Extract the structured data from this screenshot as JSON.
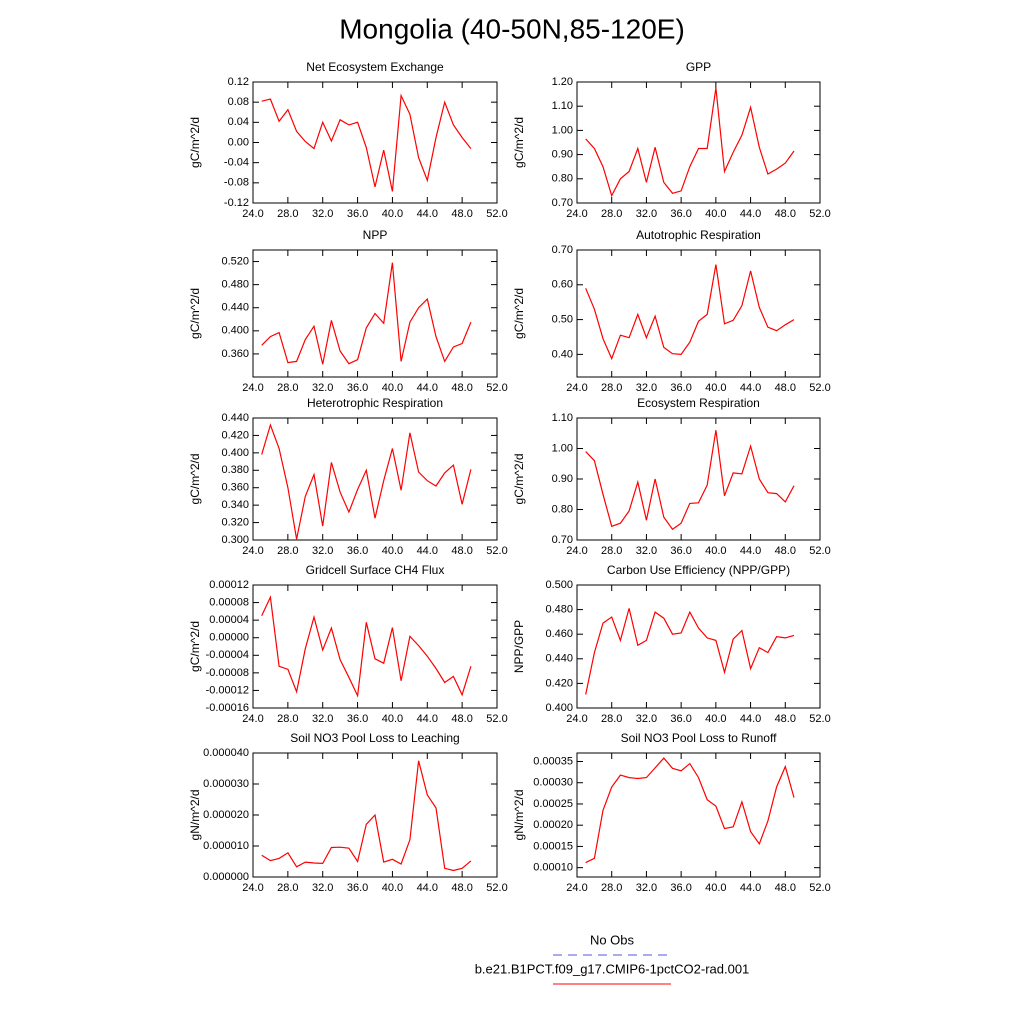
{
  "title": "Mongolia (40-50N,85-120E)",
  "legend": [
    {
      "name": "No Obs",
      "color": "#5555dd",
      "dash": true
    },
    {
      "name": "b.e21.B1PCT.f09_g17.CMIP6-1pctCO2-rad.001",
      "color": "#ff0000",
      "dash": false
    }
  ],
  "chart_data": [
    {
      "type": "line",
      "title": "Net Ecosystem Exchange",
      "ylabel": "gC/m^2/d",
      "color": "#ff0000",
      "x": [
        25,
        26,
        27,
        28,
        29,
        30,
        31,
        32,
        33,
        34,
        35,
        36,
        37,
        38,
        39,
        40,
        41,
        42,
        43,
        44,
        45,
        46,
        47,
        48,
        49
      ],
      "values": [
        0.082,
        0.086,
        0.042,
        0.065,
        0.022,
        0.002,
        -0.012,
        0.04,
        0.003,
        0.045,
        0.035,
        0.04,
        -0.01,
        -0.088,
        -0.015,
        -0.097,
        0.093,
        0.056,
        -0.03,
        -0.075,
        0.01,
        0.08,
        0.035,
        0.01,
        -0.012
      ],
      "xlim": [
        24,
        52
      ],
      "xticks": [
        {
          "value": 24,
          "label": "24.0"
        },
        {
          "value": 28,
          "label": "28.0"
        },
        {
          "value": 32,
          "label": "32.0"
        },
        {
          "value": 36,
          "label": "36.0"
        },
        {
          "value": 40,
          "label": "40.0"
        },
        {
          "value": 44,
          "label": "44.0"
        },
        {
          "value": 48,
          "label": "48.0"
        },
        {
          "value": 52,
          "label": "52.0"
        }
      ],
      "ylim": [
        -0.12,
        0.12
      ],
      "yticks": [
        -0.12,
        -0.08,
        -0.04,
        {
          "value": 0,
          "label": "0.00"
        },
        0.04,
        0.08,
        0.12
      ]
    },
    {
      "type": "line",
      "title": "GPP",
      "ylabel": "gC/m^2/d",
      "color": "#ff0000",
      "x": [
        25,
        26,
        27,
        28,
        29,
        30,
        31,
        32,
        33,
        34,
        35,
        36,
        37,
        38,
        39,
        40,
        41,
        42,
        43,
        44,
        45,
        46,
        47,
        48,
        49
      ],
      "values": [
        0.965,
        0.925,
        0.85,
        0.73,
        0.8,
        0.83,
        0.925,
        0.785,
        0.93,
        0.785,
        0.74,
        0.75,
        0.85,
        0.925,
        0.925,
        1.175,
        0.83,
        0.91,
        0.98,
        1.095,
        0.93,
        0.82,
        0.84,
        0.865,
        0.915
      ],
      "xlim": [
        24,
        52
      ],
      "xticks": [
        {
          "value": 24,
          "label": "24.0"
        },
        {
          "value": 28,
          "label": "28.0"
        },
        {
          "value": 32,
          "label": "32.0"
        },
        {
          "value": 36,
          "label": "36.0"
        },
        {
          "value": 40,
          "label": "40.0"
        },
        {
          "value": 44,
          "label": "44.0"
        },
        {
          "value": 48,
          "label": "48.0"
        },
        {
          "value": 52,
          "label": "52.0"
        }
      ],
      "ylim": [
        0.7,
        1.2
      ],
      "yticks": [
        {
          "value": 0.7,
          "label": "0.70"
        },
        {
          "value": 0.8,
          "label": "0.80"
        },
        {
          "value": 0.9,
          "label": "0.90"
        },
        {
          "value": 1,
          "label": "1.00"
        },
        {
          "value": 1.1,
          "label": "1.10"
        },
        {
          "value": 1.2,
          "label": "1.20"
        }
      ]
    },
    {
      "type": "line",
      "title": "NPP",
      "ylabel": "gC/m^2/d",
      "color": "#ff0000",
      "x": [
        25,
        26,
        27,
        28,
        29,
        30,
        31,
        32,
        33,
        34,
        35,
        36,
        37,
        38,
        39,
        40,
        41,
        42,
        43,
        44,
        45,
        46,
        47,
        48,
        49
      ],
      "values": [
        0.375,
        0.39,
        0.397,
        0.345,
        0.347,
        0.385,
        0.408,
        0.342,
        0.418,
        0.365,
        0.343,
        0.35,
        0.405,
        0.43,
        0.413,
        0.518,
        0.347,
        0.415,
        0.44,
        0.455,
        0.39,
        0.347,
        0.372,
        0.378,
        0.415
      ],
      "xlim": [
        24,
        52
      ],
      "xticks": [
        {
          "value": 24,
          "label": "24.0"
        },
        {
          "value": 28,
          "label": "28.0"
        },
        {
          "value": 32,
          "label": "32.0"
        },
        {
          "value": 36,
          "label": "36.0"
        },
        {
          "value": 40,
          "label": "40.0"
        },
        {
          "value": 44,
          "label": "44.0"
        },
        {
          "value": 48,
          "label": "48.0"
        },
        {
          "value": 52,
          "label": "52.0"
        }
      ],
      "ylim": [
        0.32,
        0.54
      ],
      "yticks": [
        {
          "value": 0.36,
          "label": "0.360"
        },
        {
          "value": 0.4,
          "label": "0.400"
        },
        {
          "value": 0.44,
          "label": "0.440"
        },
        {
          "value": 0.48,
          "label": "0.480"
        },
        {
          "value": 0.52,
          "label": "0.520"
        }
      ]
    },
    {
      "type": "line",
      "title": "Autotrophic Respiration",
      "ylabel": "gC/m^2/d",
      "color": "#ff0000",
      "x": [
        25,
        26,
        27,
        28,
        29,
        30,
        31,
        32,
        33,
        34,
        35,
        36,
        37,
        38,
        39,
        40,
        41,
        42,
        43,
        44,
        45,
        46,
        47,
        48,
        49
      ],
      "values": [
        0.59,
        0.53,
        0.445,
        0.388,
        0.455,
        0.448,
        0.515,
        0.448,
        0.51,
        0.42,
        0.402,
        0.4,
        0.435,
        0.495,
        0.515,
        0.658,
        0.488,
        0.498,
        0.54,
        0.64,
        0.535,
        0.478,
        0.468,
        0.485,
        0.5
      ],
      "xlim": [
        24,
        52
      ],
      "xticks": [
        {
          "value": 24,
          "label": "24.0"
        },
        {
          "value": 28,
          "label": "28.0"
        },
        {
          "value": 32,
          "label": "32.0"
        },
        {
          "value": 36,
          "label": "36.0"
        },
        {
          "value": 40,
          "label": "40.0"
        },
        {
          "value": 44,
          "label": "44.0"
        },
        {
          "value": 48,
          "label": "48.0"
        },
        {
          "value": 52,
          "label": "52.0"
        }
      ],
      "ylim": [
        0.335,
        0.7
      ],
      "yticks": [
        {
          "value": 0.4,
          "label": "0.40"
        },
        {
          "value": 0.5,
          "label": "0.50"
        },
        {
          "value": 0.6,
          "label": "0.60"
        },
        {
          "value": 0.7,
          "label": "0.70"
        }
      ]
    },
    {
      "type": "line",
      "title": "Heterotrophic Respiration",
      "ylabel": "gC/m^2/d",
      "color": "#ff0000",
      "x": [
        25,
        26,
        27,
        28,
        29,
        30,
        31,
        32,
        33,
        34,
        35,
        36,
        37,
        38,
        39,
        40,
        41,
        42,
        43,
        44,
        45,
        46,
        47,
        48,
        49
      ],
      "values": [
        0.398,
        0.432,
        0.405,
        0.36,
        0.301,
        0.35,
        0.375,
        0.316,
        0.389,
        0.355,
        0.332,
        0.358,
        0.38,
        0.325,
        0.368,
        0.405,
        0.357,
        0.423,
        0.378,
        0.368,
        0.362,
        0.377,
        0.386,
        0.341,
        0.381
      ],
      "xlim": [
        24,
        52
      ],
      "xticks": [
        {
          "value": 24,
          "label": "24.0"
        },
        {
          "value": 28,
          "label": "28.0"
        },
        {
          "value": 32,
          "label": "32.0"
        },
        {
          "value": 36,
          "label": "36.0"
        },
        {
          "value": 40,
          "label": "40.0"
        },
        {
          "value": 44,
          "label": "44.0"
        },
        {
          "value": 48,
          "label": "48.0"
        },
        {
          "value": 52,
          "label": "52.0"
        }
      ],
      "ylim": [
        0.3,
        0.44
      ],
      "yticks": [
        {
          "value": 0.3,
          "label": "0.300"
        },
        {
          "value": 0.32,
          "label": "0.320"
        },
        {
          "value": 0.34,
          "label": "0.340"
        },
        {
          "value": 0.36,
          "label": "0.360"
        },
        {
          "value": 0.38,
          "label": "0.380"
        },
        {
          "value": 0.4,
          "label": "0.400"
        },
        {
          "value": 0.42,
          "label": "0.420"
        },
        {
          "value": 0.44,
          "label": "0.440"
        }
      ]
    },
    {
      "type": "line",
      "title": "Ecosystem Respiration",
      "ylabel": "gC/m^2/d",
      "color": "#ff0000",
      "x": [
        25,
        26,
        27,
        28,
        29,
        30,
        31,
        32,
        33,
        34,
        35,
        36,
        37,
        38,
        39,
        40,
        41,
        42,
        43,
        44,
        45,
        46,
        47,
        48,
        49
      ],
      "values": [
        0.99,
        0.96,
        0.85,
        0.745,
        0.755,
        0.795,
        0.89,
        0.765,
        0.9,
        0.775,
        0.735,
        0.755,
        0.82,
        0.822,
        0.88,
        1.06,
        0.845,
        0.92,
        0.917,
        1.008,
        0.9,
        0.855,
        0.852,
        0.825,
        0.878
      ],
      "xlim": [
        24,
        52
      ],
      "xticks": [
        {
          "value": 24,
          "label": "24.0"
        },
        {
          "value": 28,
          "label": "28.0"
        },
        {
          "value": 32,
          "label": "32.0"
        },
        {
          "value": 36,
          "label": "36.0"
        },
        {
          "value": 40,
          "label": "40.0"
        },
        {
          "value": 44,
          "label": "44.0"
        },
        {
          "value": 48,
          "label": "48.0"
        },
        {
          "value": 52,
          "label": "52.0"
        }
      ],
      "ylim": [
        0.7,
        1.1
      ],
      "yticks": [
        {
          "value": 0.7,
          "label": "0.70"
        },
        {
          "value": 0.8,
          "label": "0.80"
        },
        {
          "value": 0.9,
          "label": "0.90"
        },
        {
          "value": 1,
          "label": "1.00"
        },
        {
          "value": 1.1,
          "label": "1.10"
        }
      ]
    },
    {
      "type": "line",
      "title": "Gridcell Surface CH4 Flux",
      "ylabel": "gC/m^2/d",
      "color": "#ff0000",
      "x": [
        25,
        26,
        27,
        28,
        29,
        30,
        31,
        32,
        33,
        34,
        35,
        36,
        37,
        38,
        39,
        40,
        41,
        42,
        43,
        44,
        45,
        46,
        47,
        48,
        49
      ],
      "values": [
        5e-05,
        9.2e-05,
        -6.5e-05,
        -7.2e-05,
        -0.000123,
        -2.5e-05,
        4.7e-05,
        -2.8e-05,
        2.2e-05,
        -5e-05,
        -9e-05,
        -0.000132,
        3.5e-05,
        -4.8e-05,
        -5.8e-05,
        2.3e-05,
        -9.8e-05,
        3e-06,
        -1.8e-05,
        -4.2e-05,
        -7e-05,
        -0.000102,
        -8.8e-05,
        -0.00013,
        -6.5e-05
      ],
      "xlim": [
        24,
        52
      ],
      "xticks": [
        {
          "value": 24,
          "label": "24.0"
        },
        {
          "value": 28,
          "label": "28.0"
        },
        {
          "value": 32,
          "label": "32.0"
        },
        {
          "value": 36,
          "label": "36.0"
        },
        {
          "value": 40,
          "label": "40.0"
        },
        {
          "value": 44,
          "label": "44.0"
        },
        {
          "value": 48,
          "label": "48.0"
        },
        {
          "value": 52,
          "label": "52.0"
        }
      ],
      "ylim": [
        -0.00016,
        0.00012
      ],
      "yticks": [
        -0.00016,
        -0.00012,
        -8e-05,
        -4e-05,
        {
          "value": 0,
          "label": "0.00000"
        },
        4e-05,
        8e-05,
        0.00012
      ]
    },
    {
      "type": "line",
      "title": "Carbon Use Efficiency (NPP/GPP)",
      "ylabel": "NPP/GPP",
      "color": "#ff0000",
      "x": [
        25,
        26,
        27,
        28,
        29,
        30,
        31,
        32,
        33,
        34,
        35,
        36,
        37,
        38,
        39,
        40,
        41,
        42,
        43,
        44,
        45,
        46,
        47,
        48,
        49
      ],
      "values": [
        0.411,
        0.445,
        0.469,
        0.474,
        0.455,
        0.481,
        0.451,
        0.455,
        0.478,
        0.473,
        0.46,
        0.461,
        0.478,
        0.465,
        0.457,
        0.455,
        0.429,
        0.456,
        0.463,
        0.432,
        0.449,
        0.445,
        0.458,
        0.457,
        0.459
      ],
      "xlim": [
        24,
        52
      ],
      "xticks": [
        {
          "value": 24,
          "label": "24.0"
        },
        {
          "value": 28,
          "label": "28.0"
        },
        {
          "value": 32,
          "label": "32.0"
        },
        {
          "value": 36,
          "label": "36.0"
        },
        {
          "value": 40,
          "label": "40.0"
        },
        {
          "value": 44,
          "label": "44.0"
        },
        {
          "value": 48,
          "label": "48.0"
        },
        {
          "value": 52,
          "label": "52.0"
        }
      ],
      "ylim": [
        0.4,
        0.5
      ],
      "yticks": [
        {
          "value": 0.4,
          "label": "0.400"
        },
        {
          "value": 0.42,
          "label": "0.420"
        },
        {
          "value": 0.44,
          "label": "0.440"
        },
        {
          "value": 0.46,
          "label": "0.460"
        },
        {
          "value": 0.48,
          "label": "0.480"
        },
        {
          "value": 0.5,
          "label": "0.500"
        }
      ]
    },
    {
      "type": "line",
      "title": "Soil NO3 Pool Loss to Leaching",
      "ylabel": "gN/m^2/d",
      "color": "#ff0000",
      "x": [
        25,
        26,
        27,
        28,
        29,
        30,
        31,
        32,
        33,
        34,
        35,
        36,
        37,
        38,
        39,
        40,
        41,
        42,
        43,
        44,
        45,
        46,
        47,
        48,
        49
      ],
      "values": [
        7e-06,
        5.3e-06,
        6e-06,
        7.8e-06,
        3.3e-06,
        4.8e-06,
        4.5e-06,
        4.4e-06,
        9.5e-06,
        9.6e-06,
        9.3e-06,
        5e-06,
        1.7e-05,
        2e-05,
        4.8e-06,
        5.7e-06,
        4.2e-06,
        1.2e-05,
        3.75e-05,
        2.65e-05,
        2.23e-05,
        2.8e-06,
        2.1e-06,
        2.8e-06,
        5.2e-06
      ],
      "xlim": [
        24,
        52
      ],
      "xticks": [
        {
          "value": 24,
          "label": "24.0"
        },
        {
          "value": 28,
          "label": "28.0"
        },
        {
          "value": 32,
          "label": "32.0"
        },
        {
          "value": 36,
          "label": "36.0"
        },
        {
          "value": 40,
          "label": "40.0"
        },
        {
          "value": 44,
          "label": "44.0"
        },
        {
          "value": 48,
          "label": "48.0"
        },
        {
          "value": 52,
          "label": "52.0"
        }
      ],
      "ylim": [
        0,
        4e-05
      ],
      "yticks": [
        {
          "value": 0,
          "label": "0.000000"
        },
        {
          "value": 1e-05,
          "label": "0.000010"
        },
        {
          "value": 2e-05,
          "label": "0.000020"
        },
        {
          "value": 3e-05,
          "label": "0.000030"
        },
        {
          "value": 4e-05,
          "label": "0.000040"
        }
      ]
    },
    {
      "type": "line",
      "title": "Soil NO3 Pool Loss to Runoff",
      "ylabel": "gN/m^2/d",
      "color": "#ff0000",
      "x": [
        25,
        26,
        27,
        28,
        29,
        30,
        31,
        32,
        33,
        34,
        35,
        36,
        37,
        38,
        39,
        40,
        41,
        42,
        43,
        44,
        45,
        46,
        47,
        48,
        49
      ],
      "values": [
        0.000112,
        0.000122,
        0.000235,
        0.00029,
        0.000318,
        0.000312,
        0.00031,
        0.000312,
        0.000335,
        0.000358,
        0.000334,
        0.000328,
        0.000345,
        0.000312,
        0.00026,
        0.000245,
        0.000192,
        0.000196,
        0.000255,
        0.000185,
        0.000156,
        0.00021,
        0.00029,
        0.000338,
        0.000265
      ],
      "xlim": [
        24,
        52
      ],
      "xticks": [
        {
          "value": 24,
          "label": "24.0"
        },
        {
          "value": 28,
          "label": "28.0"
        },
        {
          "value": 32,
          "label": "32.0"
        },
        {
          "value": 36,
          "label": "36.0"
        },
        {
          "value": 40,
          "label": "40.0"
        },
        {
          "value": 44,
          "label": "44.0"
        },
        {
          "value": 48,
          "label": "48.0"
        },
        {
          "value": 52,
          "label": "52.0"
        }
      ],
      "ylim": [
        7.8e-05,
        0.00037
      ],
      "yticks": [
        {
          "value": 0.0001,
          "label": "0.00010"
        },
        0.00015,
        {
          "value": 0.0002,
          "label": "0.00020"
        },
        0.00025,
        {
          "value": 0.0003,
          "label": "0.00030"
        },
        0.00035
      ]
    }
  ]
}
